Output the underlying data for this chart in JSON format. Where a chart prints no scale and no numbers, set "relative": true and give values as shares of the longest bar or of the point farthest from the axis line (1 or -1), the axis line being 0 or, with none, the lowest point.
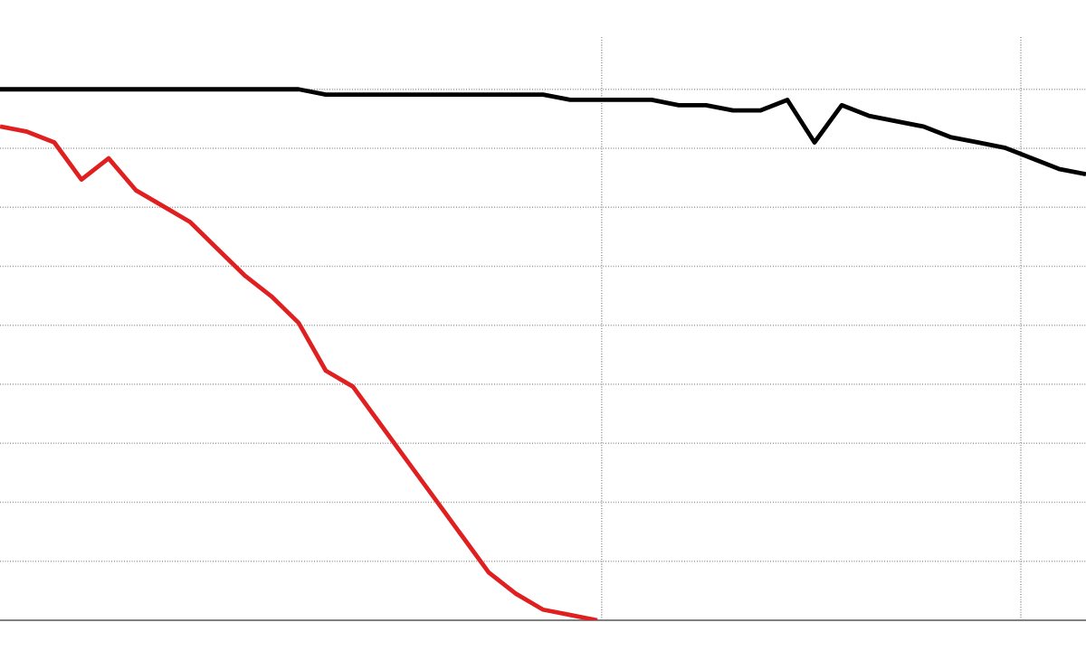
{
  "chart_data": {
    "type": "line",
    "relative": true,
    "grid": true,
    "line_style": "solid",
    "categories": [
      null,
      null,
      null,
      null,
      null,
      null,
      null,
      null,
      null,
      null,
      null,
      null,
      null,
      null,
      null,
      null,
      null,
      null,
      null,
      null,
      null,
      null,
      null,
      null,
      null,
      null,
      null,
      null,
      null,
      null,
      null,
      null,
      null,
      null,
      null,
      null,
      null,
      null,
      null,
      null,
      null
    ],
    "series": [
      {
        "color": "#000000",
        "values": [
          1.0,
          1.0,
          1.0,
          1.0,
          1.0,
          1.0,
          1.0,
          1.0,
          1.0,
          1.0,
          1.0,
          1.0,
          0.99,
          0.99,
          0.99,
          0.99,
          0.99,
          0.99,
          0.99,
          0.99,
          0.99,
          0.98,
          0.98,
          0.98,
          0.98,
          0.97,
          0.97,
          0.96,
          0.96,
          0.98,
          0.9,
          0.97,
          0.95,
          0.94,
          0.93,
          0.91,
          0.9,
          0.89,
          0.87,
          0.85,
          0.84
        ]
      },
      {
        "color": "#e02020",
        "values": [
          0.93,
          0.92,
          0.9,
          0.83,
          0.87,
          0.81,
          0.78,
          0.75,
          0.7,
          0.65,
          0.61,
          0.56,
          0.47,
          0.44,
          0.37,
          0.3,
          0.23,
          0.16,
          0.09,
          0.05,
          0.02,
          0.01,
          0.0,
          null,
          null,
          null,
          null,
          null,
          null,
          null,
          null,
          null,
          null,
          null,
          null,
          null,
          null,
          null,
          null,
          null,
          null
        ]
      }
    ]
  }
}
